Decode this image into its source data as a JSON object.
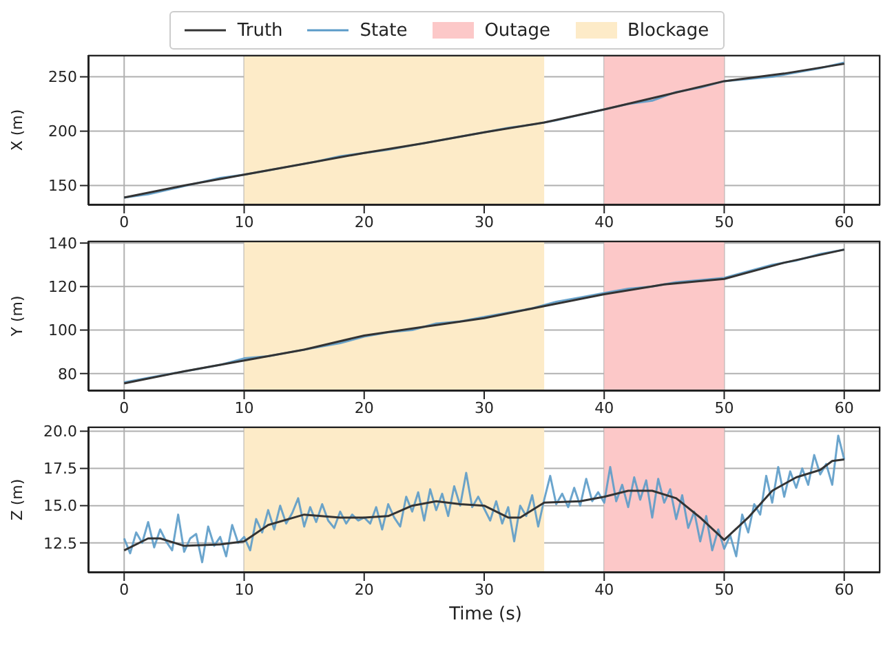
{
  "chart_data": [
    {
      "type": "line",
      "ylabel": "X (m)",
      "legend": "top",
      "grid": true,
      "xlim": [
        -3,
        63
      ],
      "xticks": [
        0,
        10,
        20,
        30,
        40,
        50,
        60
      ],
      "ylim": [
        132,
        270
      ],
      "yticks": [
        150,
        200,
        250
      ],
      "bands": [
        {
          "axis": "x",
          "from": 40,
          "to": 50,
          "label": "Outage",
          "color": "#fcc8c8"
        },
        {
          "axis": "x",
          "from": 10,
          "to": 35,
          "label": "Blockage",
          "color": "#fdebc8"
        }
      ],
      "series": [
        {
          "name": "Truth",
          "color": "#333333",
          "x": [
            0,
            5,
            10,
            15,
            20,
            25,
            30,
            35,
            40,
            45,
            50,
            55,
            60
          ],
          "values": [
            139,
            150,
            160,
            170,
            180,
            189,
            199,
            208,
            220,
            233,
            246,
            253,
            262
          ]
        },
        {
          "name": "State",
          "color": "#5b9bc8",
          "x": [
            0,
            2,
            4,
            6,
            8,
            10,
            12,
            14,
            16,
            18,
            20,
            22,
            24,
            26,
            28,
            30,
            32,
            34,
            36,
            38,
            40,
            42,
            44,
            46,
            48,
            50,
            52,
            54,
            56,
            58,
            60
          ],
          "values": [
            139,
            142,
            147,
            152,
            157,
            160,
            164,
            168,
            172,
            177,
            180,
            183,
            187,
            191,
            195,
            199,
            203,
            206,
            210,
            215,
            220,
            225,
            228,
            236,
            240,
            246,
            248,
            250,
            254,
            258,
            263
          ]
        }
      ]
    },
    {
      "type": "line",
      "ylabel": "Y (m)",
      "grid": true,
      "xlim": [
        -3,
        63
      ],
      "xticks": [
        0,
        10,
        20,
        30,
        40,
        50,
        60
      ],
      "ylim": [
        72,
        141
      ],
      "yticks": [
        80,
        100,
        120,
        140
      ],
      "bands": [
        {
          "axis": "x",
          "from": 40,
          "to": 50,
          "color": "#fcc8c8"
        },
        {
          "axis": "x",
          "from": 10,
          "to": 35,
          "color": "#fdebc8"
        }
      ],
      "series": [
        {
          "color": "#333333",
          "x": [
            0,
            5,
            10,
            15,
            20,
            25,
            30,
            35,
            40,
            45,
            50,
            55,
            60
          ],
          "values": [
            75.5,
            81,
            86,
            91,
            97.5,
            101.5,
            105.5,
            111,
            116.5,
            121,
            123.5,
            131,
            137
          ]
        },
        {
          "color": "#5b9bc8",
          "x": [
            0,
            2,
            4,
            6,
            8,
            10,
            12,
            14,
            16,
            18,
            20,
            22,
            24,
            26,
            28,
            30,
            32,
            34,
            36,
            38,
            40,
            42,
            44,
            46,
            48,
            50,
            52,
            54,
            56,
            58,
            60
          ],
          "values": [
            76,
            78,
            80,
            82,
            84,
            87,
            88,
            90,
            92,
            94,
            97,
            99,
            100,
            103,
            104,
            106,
            108,
            110,
            113,
            115,
            117,
            119,
            120,
            122,
            123,
            124,
            127,
            130,
            132,
            135,
            137
          ]
        }
      ]
    },
    {
      "type": "line",
      "xlabel": "Time (s)",
      "ylabel": "Z (m)",
      "grid": true,
      "xlim": [
        -3,
        63
      ],
      "xticks": [
        0,
        10,
        20,
        30,
        40,
        50,
        60
      ],
      "ylim": [
        10.5,
        20.3
      ],
      "yticks": [
        {
          "value": 12.5,
          "label": "12.5"
        },
        {
          "value": 15,
          "label": "15.0"
        },
        {
          "value": 17.5,
          "label": "17.5"
        },
        {
          "value": 20,
          "label": "20.0"
        }
      ],
      "bands": [
        {
          "axis": "x",
          "from": 40,
          "to": 50,
          "color": "#fcc8c8"
        },
        {
          "axis": "x",
          "from": 10,
          "to": 35,
          "color": "#fdebc8"
        }
      ],
      "series": [
        {
          "color": "#333333",
          "x": [
            0,
            2,
            3,
            5,
            8,
            10,
            12,
            15,
            18,
            20,
            22,
            24,
            26,
            28,
            30,
            32,
            33,
            35,
            38,
            40,
            42,
            44,
            46,
            48,
            50,
            52,
            54,
            56,
            58,
            59,
            60
          ],
          "values": [
            12,
            12.8,
            12.8,
            12.3,
            12.4,
            12.6,
            13.7,
            14.4,
            14.2,
            14.2,
            14.3,
            15,
            15.3,
            15.1,
            15,
            14.2,
            14.2,
            15.2,
            15.3,
            15.6,
            16,
            16,
            15.5,
            14.2,
            12.7,
            14.2,
            16,
            16.9,
            17.4,
            18,
            18.1
          ]
        },
        {
          "color": "#5b9bc8",
          "x": [
            0,
            0.5,
            1,
            1.5,
            2,
            2.5,
            3,
            3.5,
            4,
            4.5,
            5,
            5.5,
            6,
            6.5,
            7,
            7.5,
            8,
            8.5,
            9,
            9.5,
            10,
            10.5,
            11,
            11.5,
            12,
            12.5,
            13,
            13.5,
            14,
            14.5,
            15,
            15.5,
            16,
            16.5,
            17,
            17.5,
            18,
            18.5,
            19,
            19.5,
            20,
            20.5,
            21,
            21.5,
            22,
            22.5,
            23,
            23.5,
            24,
            24.5,
            25,
            25.5,
            26,
            26.5,
            27,
            27.5,
            28,
            28.5,
            29,
            29.5,
            30,
            30.5,
            31,
            31.5,
            32,
            32.5,
            33,
            33.5,
            34,
            34.5,
            35,
            35.5,
            36,
            36.5,
            37,
            37.5,
            38,
            38.5,
            39,
            39.5,
            40,
            40.5,
            41,
            41.5,
            42,
            42.5,
            43,
            43.5,
            44,
            44.5,
            45,
            45.5,
            46,
            46.5,
            47,
            47.5,
            48,
            48.5,
            49,
            49.5,
            50,
            50.5,
            51,
            51.5,
            52,
            52.5,
            53,
            53.5,
            54,
            54.5,
            55,
            55.5,
            56,
            56.5,
            57,
            57.5,
            58,
            58.5,
            59,
            59.5,
            60
          ],
          "values": [
            12.8,
            11.8,
            13.2,
            12.5,
            13.9,
            12.2,
            13.4,
            12.6,
            12.0,
            14.4,
            11.9,
            12.8,
            13.1,
            11.2,
            13.6,
            12.3,
            12.9,
            11.6,
            13.7,
            12.5,
            12.9,
            12.0,
            14.1,
            13.2,
            14.7,
            13.4,
            15.0,
            13.8,
            14.5,
            15.5,
            13.6,
            14.9,
            13.9,
            15.1,
            14.0,
            13.5,
            14.6,
            13.8,
            14.4,
            14.0,
            14.2,
            13.8,
            14.9,
            13.4,
            15.1,
            14.2,
            13.6,
            15.6,
            14.6,
            15.9,
            14.0,
            16.1,
            14.7,
            15.8,
            14.3,
            16.3,
            15.0,
            17.2,
            14.9,
            15.6,
            14.8,
            14.0,
            15.3,
            13.8,
            14.9,
            12.6,
            15.0,
            14.3,
            15.7,
            13.6,
            15.4,
            17.0,
            15.1,
            15.8,
            14.9,
            16.2,
            15.0,
            16.8,
            15.3,
            15.9,
            15.2,
            17.6,
            15.3,
            16.4,
            14.9,
            16.9,
            15.4,
            16.7,
            14.2,
            16.8,
            15.2,
            16.1,
            14.1,
            15.7,
            13.5,
            14.6,
            12.6,
            14.3,
            12.0,
            13.4,
            12.1,
            13.0,
            11.6,
            14.4,
            13.2,
            15.1,
            14.4,
            17.0,
            15.2,
            17.6,
            15.6,
            17.3,
            16.2,
            17.5,
            16.4,
            18.4,
            17.1,
            17.8,
            16.4,
            19.7,
            18.1
          ]
        }
      ]
    }
  ]
}
